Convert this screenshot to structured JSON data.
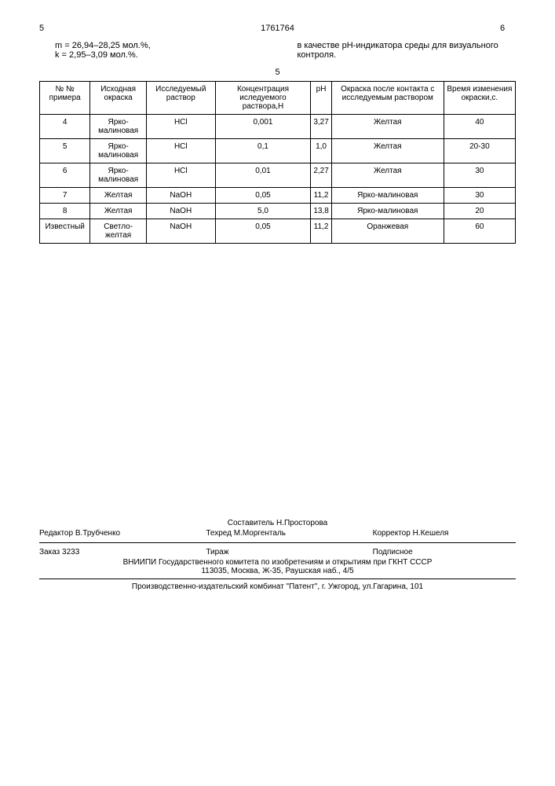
{
  "header": {
    "page_left": "5",
    "doc_number": "1761764",
    "page_right": "6"
  },
  "left_text": {
    "line1": "m = 26,94–28,25 мол.%,",
    "line2": "k = 2,95–3,09 мол.%."
  },
  "right_text": "в качестве рН-индикатора среды для визуального контроля.",
  "table_number": "5",
  "table": {
    "headers": [
      "№ № примера",
      "Исходная окраска",
      "Исследуемый раствор",
      "Концентрация иследуемого раствора,Н",
      "рН",
      "Окраска после контакта с исследуемым раствором",
      "Время изменения окраски,с."
    ],
    "rows": [
      [
        "4",
        "Ярко-малиновая",
        "HCl",
        "0,001",
        "3,27",
        "Желтая",
        "40"
      ],
      [
        "5",
        "Ярко-малиновая",
        "HCl",
        "0,1",
        "1,0",
        "Желтая",
        "20-30"
      ],
      [
        "6",
        "Ярко-малиновая",
        "HCl",
        "0,01",
        "2,27",
        "Желтая",
        "30"
      ],
      [
        "7",
        "Желтая",
        "NaOH",
        "0,05",
        "11,2",
        "Ярко-малиновая",
        "30"
      ],
      [
        "8",
        "Желтая",
        "NaOH",
        "5,0",
        "13,8",
        "Ярко-малиновая",
        "20"
      ],
      [
        "Известный",
        "Светло-желтая",
        "NaOH",
        "0,05",
        "11,2",
        "Оранжевая",
        "60"
      ]
    ]
  },
  "footer": {
    "composer": "Составитель Н.Просторова",
    "editor": "Редактор  В.Трубченко",
    "techred": "Техред М.Моргенталь",
    "corrector": "Корректор  Н.Кешеля",
    "order": "Заказ 3233",
    "tirage": "Тираж",
    "subscription": "Подписное",
    "org": "ВНИИПИ Государственного комитета по изобретениям и открытиям при ГКНТ СССР",
    "address1": "113035, Москва, Ж-35, Раушская наб., 4/5",
    "publisher": "Производственно-издательский комбинат \"Патент\", г. Ужгород, ул.Гагарина, 101"
  }
}
